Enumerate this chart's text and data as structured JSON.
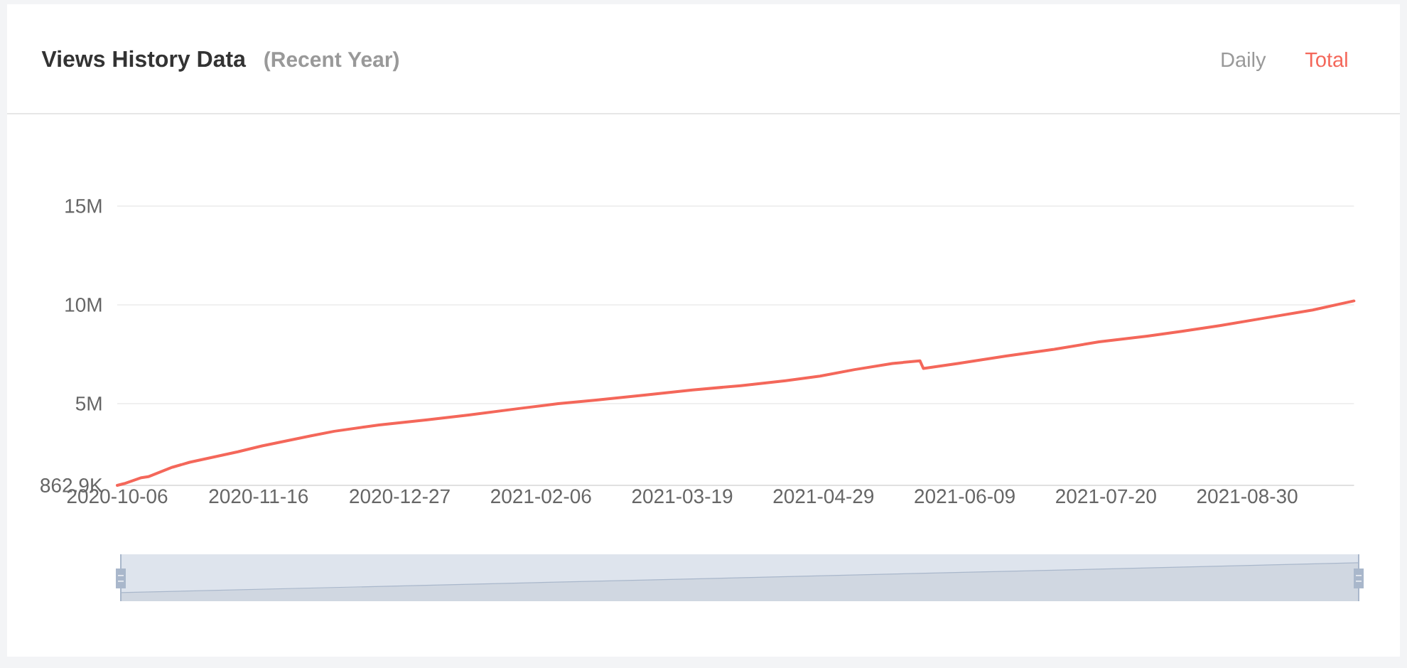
{
  "chart_data": {
    "type": "line",
    "title": "Views History Data",
    "subtitle": "(Recent Year)",
    "annotations": [
      "Daily"
    ],
    "x": [
      "2020-10-06",
      "2020-10-08",
      "2020-10-13",
      "2020-10-15",
      "2020-10-22",
      "2020-10-27",
      "2020-11-10",
      "2020-11-17",
      "2020-11-24",
      "2020-12-01",
      "2020-12-08",
      "2020-12-21",
      "2021-01-04",
      "2021-01-16",
      "2021-01-31",
      "2021-02-11",
      "2021-02-22",
      "2021-03-08",
      "2021-03-22",
      "2021-04-05",
      "2021-04-18",
      "2021-04-28",
      "2021-05-08",
      "2021-05-19",
      "2021-05-27",
      "2021-05-28",
      "2021-06-07",
      "2021-06-21",
      "2021-07-05",
      "2021-07-18",
      "2021-08-01",
      "2021-08-11",
      "2021-08-22",
      "2021-09-04",
      "2021-09-18",
      "2021-09-30"
    ],
    "series": [
      {
        "name": "Total",
        "color": "#f4675a",
        "values": [
          862900,
          950000,
          1250000,
          1300000,
          1780000,
          2030000,
          2560000,
          2860000,
          3110000,
          3360000,
          3600000,
          3920000,
          4180000,
          4420000,
          4760000,
          5000000,
          5180000,
          5430000,
          5690000,
          5910000,
          6160000,
          6390000,
          6720000,
          7030000,
          7170000,
          6780000,
          7030000,
          7410000,
          7750000,
          8130000,
          8420000,
          8660000,
          8950000,
          9330000,
          9740000,
          10200000
        ]
      }
    ],
    "xlim": [
      "2020-10-06",
      "2021-09-30"
    ],
    "xticks": [
      "2020-10-06",
      "2020-11-16",
      "2020-12-27",
      "2021-02-06",
      "2021-03-19",
      "2021-04-29",
      "2021-06-09",
      "2021-07-20",
      "2021-08-30"
    ],
    "ylim": [
      862900,
      15000000
    ],
    "yticks": [
      {
        "value": 862900,
        "label": "862.9K"
      },
      {
        "value": 5000000,
        "label": "5M"
      },
      {
        "value": 10000000,
        "label": "10M"
      },
      {
        "value": 15000000,
        "label": "15M"
      }
    ],
    "grid": "y",
    "legend": "top right"
  }
}
